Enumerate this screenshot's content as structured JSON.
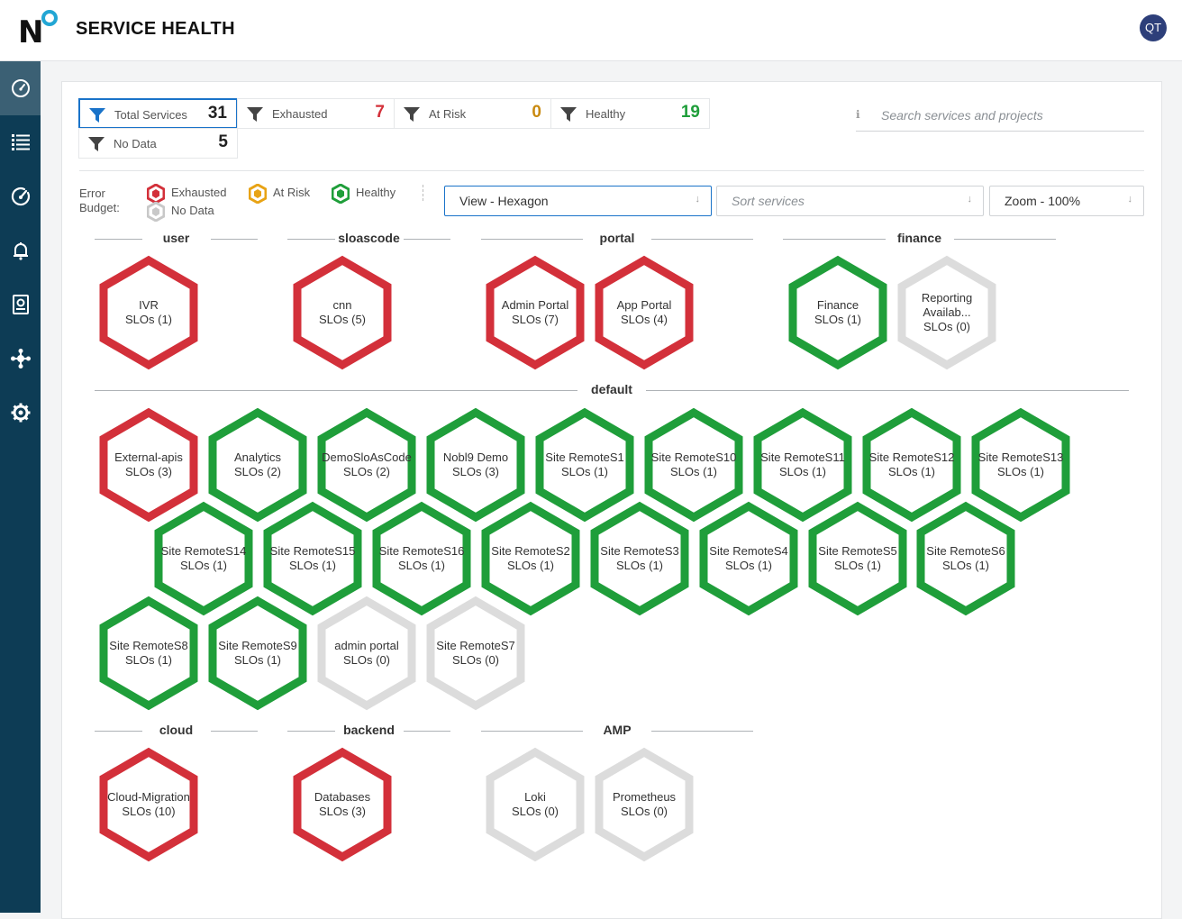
{
  "app": {
    "title": "SERVICE HEALTH",
    "user_initials": "QT"
  },
  "colors": {
    "exhausted": "#d3303a",
    "at_risk": "#e8a315",
    "healthy": "#1f9e3a",
    "no_data": "#dcdcdc",
    "accent": "#1a73c9",
    "sidebar": "#0d3c55"
  },
  "sidebar": {
    "items": [
      {
        "icon": "dashboard-icon",
        "active": true
      },
      {
        "icon": "list-icon",
        "active": false
      },
      {
        "icon": "gauge-icon",
        "active": false
      },
      {
        "icon": "bell-icon",
        "active": false
      },
      {
        "icon": "report-icon",
        "active": false
      },
      {
        "icon": "integrations-icon",
        "active": false
      },
      {
        "icon": "gear-icon",
        "active": false
      }
    ]
  },
  "stats": [
    {
      "label": "Total Services",
      "count": "31",
      "color": "#222222",
      "selected": true
    },
    {
      "label": "Exhausted",
      "count": "7",
      "color": "#d3303a",
      "selected": false
    },
    {
      "label": "At Risk",
      "count": "0",
      "color": "#c98a10",
      "selected": false
    },
    {
      "label": "Healthy",
      "count": "19",
      "color": "#1f9e3a",
      "selected": false
    },
    {
      "label": "No Data",
      "count": "5",
      "color": "#222222",
      "selected": false
    }
  ],
  "search": {
    "placeholder": "Search services and projects"
  },
  "legend": {
    "label": "Error Budget:",
    "items": [
      {
        "label": "Exhausted",
        "status": "exhausted"
      },
      {
        "label": "At Risk",
        "status": "at_risk"
      },
      {
        "label": "Healthy",
        "status": "healthy"
      },
      {
        "label": "No Data",
        "status": "no_data"
      }
    ]
  },
  "controls": {
    "view": "View - Hexagon",
    "sort_placeholder": "Sort services",
    "zoom": "Zoom - 100%"
  },
  "groups": [
    {
      "name": "user",
      "services": [
        {
          "name": "IVR",
          "slos": "SLOs (1)",
          "status": "exhausted"
        }
      ]
    },
    {
      "name": "sloascode",
      "services": [
        {
          "name": "cnn",
          "slos": "SLOs (5)",
          "status": "exhausted"
        }
      ]
    },
    {
      "name": "portal",
      "services": [
        {
          "name": "Admin Portal",
          "slos": "SLOs (7)",
          "status": "exhausted"
        },
        {
          "name": "App Portal",
          "slos": "SLOs (4)",
          "status": "exhausted"
        }
      ]
    },
    {
      "name": "finance",
      "services": [
        {
          "name": "Finance",
          "slos": "SLOs (1)",
          "status": "healthy"
        },
        {
          "name": "Reporting Availab...",
          "slos": "SLOs (0)",
          "status": "no_data"
        }
      ]
    },
    {
      "name": "default",
      "services": [
        {
          "name": "External-apis",
          "slos": "SLOs (3)",
          "status": "exhausted"
        },
        {
          "name": "Analytics",
          "slos": "SLOs (2)",
          "status": "healthy"
        },
        {
          "name": "DemoSloAsCode",
          "slos": "SLOs (2)",
          "status": "healthy"
        },
        {
          "name": "Nobl9 Demo",
          "slos": "SLOs (3)",
          "status": "healthy"
        },
        {
          "name": "Site RemoteS1",
          "slos": "SLOs (1)",
          "status": "healthy"
        },
        {
          "name": "Site RemoteS10",
          "slos": "SLOs (1)",
          "status": "healthy"
        },
        {
          "name": "Site RemoteS11",
          "slos": "SLOs (1)",
          "status": "healthy"
        },
        {
          "name": "Site RemoteS12",
          "slos": "SLOs (1)",
          "status": "healthy"
        },
        {
          "name": "Site RemoteS13",
          "slos": "SLOs (1)",
          "status": "healthy"
        },
        {
          "name": "Site RemoteS14",
          "slos": "SLOs (1)",
          "status": "healthy"
        },
        {
          "name": "Site RemoteS15",
          "slos": "SLOs (1)",
          "status": "healthy"
        },
        {
          "name": "Site RemoteS16",
          "slos": "SLOs (1)",
          "status": "healthy"
        },
        {
          "name": "Site RemoteS2",
          "slos": "SLOs (1)",
          "status": "healthy"
        },
        {
          "name": "Site RemoteS3",
          "slos": "SLOs (1)",
          "status": "healthy"
        },
        {
          "name": "Site RemoteS4",
          "slos": "SLOs (1)",
          "status": "healthy"
        },
        {
          "name": "Site RemoteS5",
          "slos": "SLOs (1)",
          "status": "healthy"
        },
        {
          "name": "Site RemoteS6",
          "slos": "SLOs (1)",
          "status": "healthy"
        },
        {
          "name": "Site RemoteS8",
          "slos": "SLOs (1)",
          "status": "healthy"
        },
        {
          "name": "Site RemoteS9",
          "slos": "SLOs (1)",
          "status": "healthy"
        },
        {
          "name": "admin portal",
          "slos": "SLOs (0)",
          "status": "no_data"
        },
        {
          "name": "Site RemoteS7",
          "slos": "SLOs (0)",
          "status": "no_data"
        }
      ]
    },
    {
      "name": "cloud",
      "services": [
        {
          "name": "Cloud-Migration",
          "slos": "SLOs (10)",
          "status": "exhausted"
        }
      ]
    },
    {
      "name": "backend",
      "services": [
        {
          "name": "Databases",
          "slos": "SLOs (3)",
          "status": "exhausted"
        }
      ]
    },
    {
      "name": "AMP",
      "services": [
        {
          "name": "Loki",
          "slos": "SLOs (0)",
          "status": "no_data"
        },
        {
          "name": "Prometheus",
          "slos": "SLOs (0)",
          "status": "no_data"
        }
      ]
    }
  ]
}
